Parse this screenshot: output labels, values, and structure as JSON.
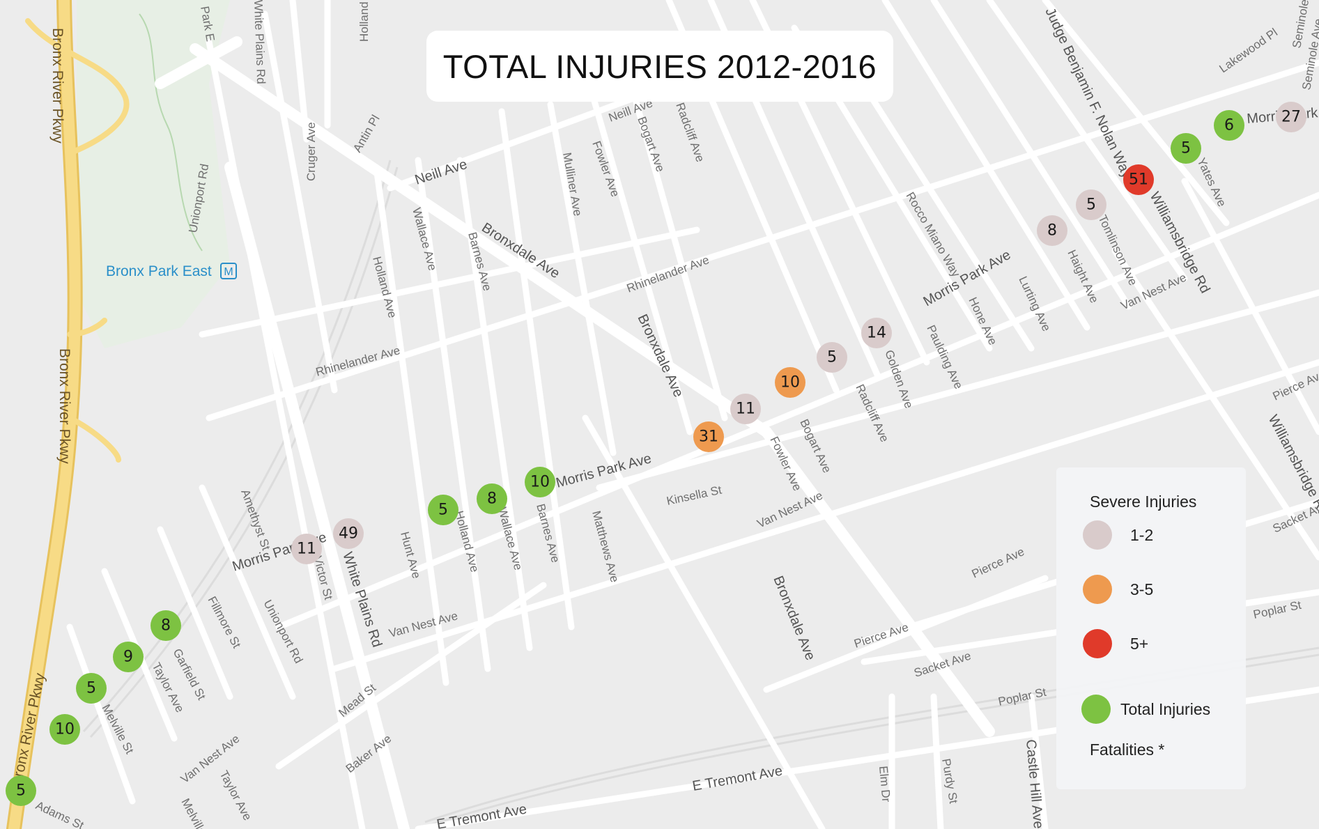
{
  "title": "TOTAL INJURIES 2012-2016",
  "colors": {
    "severe_low": "#d9cbcb",
    "severe_mid": "#ee9a4f",
    "severe_high": "#e03a2a",
    "total": "#7dc242",
    "road": "#ffffff",
    "parkway": "#f5d67d",
    "park": "#cfe5c8"
  },
  "legend": {
    "heading": "Severe Injuries",
    "items": [
      {
        "label": "1-2",
        "color": "#d9cbcb"
      },
      {
        "label": "3-5",
        "color": "#ee9a4f"
      },
      {
        "label": "5+",
        "color": "#e03a2a"
      },
      {
        "label": "Total Injuries",
        "color": "#7dc242"
      }
    ],
    "fatalities": "Fatalities *"
  },
  "markers": [
    {
      "value": "5",
      "category": "total"
    },
    {
      "value": "10",
      "category": "total"
    },
    {
      "value": "5",
      "category": "total"
    },
    {
      "value": "9",
      "category": "total"
    },
    {
      "value": "8",
      "category": "total"
    },
    {
      "value": "11",
      "category": "severe_low"
    },
    {
      "value": "49",
      "category": "severe_low"
    },
    {
      "value": "5",
      "category": "total"
    },
    {
      "value": "8",
      "category": "total"
    },
    {
      "value": "10",
      "category": "total"
    },
    {
      "value": "31",
      "category": "severe_mid"
    },
    {
      "value": "11",
      "category": "severe_low"
    },
    {
      "value": "10",
      "category": "severe_mid"
    },
    {
      "value": "5",
      "category": "severe_low"
    },
    {
      "value": "14",
      "category": "severe_low"
    },
    {
      "value": "8",
      "category": "severe_low"
    },
    {
      "value": "5",
      "category": "severe_low"
    },
    {
      "value": "51",
      "category": "severe_high"
    },
    {
      "value": "5",
      "category": "total"
    },
    {
      "value": "6",
      "category": "total"
    },
    {
      "value": "27",
      "category": "severe_low"
    }
  ],
  "map_labels": {
    "bronx_river_pkwy": "Bronx River Pkwy",
    "bronx_park_east": "Bronx Park East",
    "metro_icon": "metro-icon",
    "park_e": "Park E",
    "white_plains_rd": "White Plains Rd",
    "holland_ave": "Holland Ave",
    "antin_pl": "Antin Pl",
    "neill_ave": "Neill Ave",
    "cruger_ave": "Cruger Ave",
    "unionport_rd": "Unionport Rd",
    "wallace_ave": "Wallace Ave",
    "barnes_ave": "Barnes Ave",
    "bronxdale_ave": "Bronxdale Ave",
    "mulliner_ave": "Mulliner Ave",
    "fowler_ave": "Fowler Ave",
    "bogart_ave": "Bogart Ave",
    "radcliff_ave": "Radcliff Ave",
    "rhinelander_ave": "Rhinelander Ave",
    "rocco_miano_way": "Rocco Miano Way",
    "morris_park_ave": "Morris Park Ave",
    "hone_ave": "Hone Ave",
    "paulding_ave": "Paulding Ave",
    "lurting_ave": "Lurting Ave",
    "judge_nolan_way": "Judge Benjamin F. Nolan Way",
    "williamsbridge_rd": "Williamsbridge Rd",
    "van_nest_ave": "Van Nest Ave",
    "lakewood_pl": "Lakewood Pl",
    "seminole_ave": "Seminole Ave",
    "pierce_ave": "Pierce Ave",
    "kinsella_st": "Kinsella St",
    "matthews_ave": "Matthews Ave",
    "amethyst_st": "Amethyst St",
    "fillmore_st": "Fillmore St",
    "hunt_ave": "Hunt Ave",
    "victor_st": "Victor St",
    "mead_st": "Mead St",
    "baker_ave": "Baker Ave",
    "taylor_ave": "Taylor Ave",
    "melville_st": "Melville St",
    "adams_st": "Adams St",
    "garfield_st": "Garfield St",
    "e_tremont_ave": "E Tremont Ave",
    "sacket_ave": "Sacket Ave",
    "poplar_st": "Poplar St",
    "castle_hill_ave": "Castle Hill Ave",
    "elm_dr": "Elm Dr",
    "purdy_st": "Purdy St",
    "golden_ave": "Golden Ave",
    "haight_ave": "Haight Ave",
    "tomlinson_ave": "Tomlinson Ave",
    "yates_ave": "Yates Ave",
    "pelham_pkwy_fragment": "Morris Park Ave",
    "delancey_fragment": "Seminole Ave"
  }
}
